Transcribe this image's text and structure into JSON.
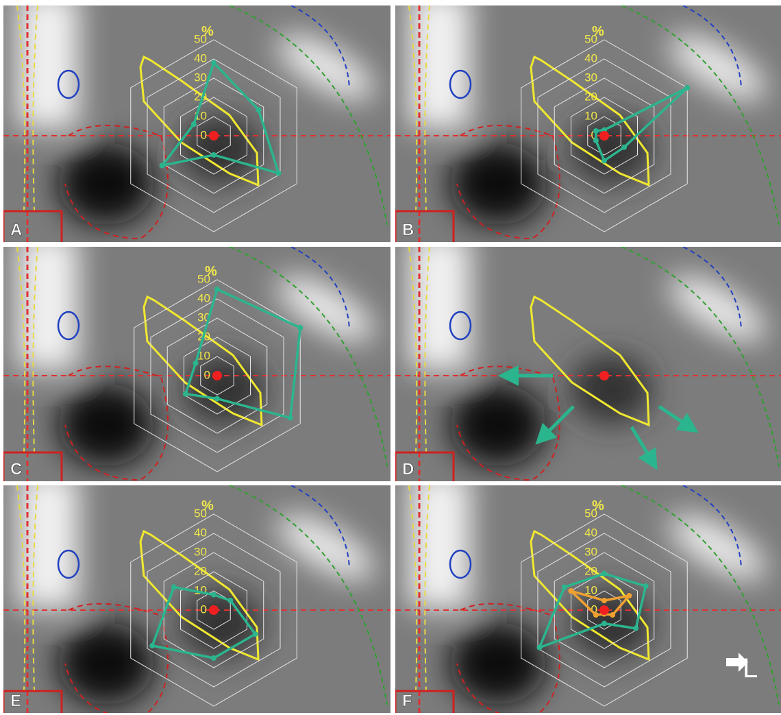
{
  "radar": {
    "ticks": [
      0,
      10,
      20,
      30,
      40,
      50
    ],
    "unit": "%"
  },
  "orientation": "L",
  "panels": [
    {
      "label": "A",
      "series": [
        {
          "color": "#2bb58e",
          "values": [
            38,
            27,
            39,
            10,
            31,
            12
          ]
        }
      ]
    },
    {
      "label": "B",
      "series": [
        {
          "color": "#2bb58e",
          "values": [
            3,
            50,
            12,
            13,
            5,
            5
          ]
        }
      ]
    },
    {
      "label": "C",
      "series": [
        {
          "color": "#2bb58e",
          "values": [
            45,
            50,
            44,
            12,
            19,
            13
          ]
        }
      ]
    },
    {
      "label": "D",
      "series": []
    },
    {
      "label": "E",
      "series": [
        {
          "color": "#2bb58e",
          "values": [
            8,
            10,
            25,
            25,
            37,
            24
          ]
        }
      ]
    },
    {
      "label": "F",
      "series": [
        {
          "color": "#2bb58e",
          "values": [
            19,
            25,
            19,
            7,
            39,
            24
          ]
        },
        {
          "color": "#f0a030",
          "values": [
            5,
            15,
            5,
            2,
            5,
            20
          ]
        }
      ]
    }
  ]
}
